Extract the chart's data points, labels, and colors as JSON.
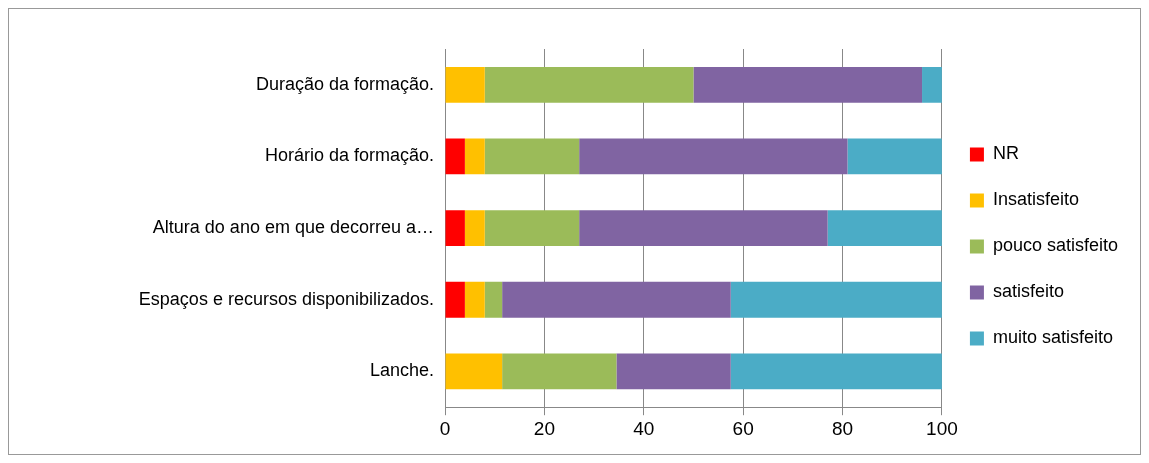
{
  "chart_data": {
    "type": "bar",
    "orientation": "horizontal",
    "stacked": true,
    "categories": [
      "Duração da formação.",
      "Horário da formação.",
      "Altura do ano em que decorreu a…",
      "Espaços e recursos disponibilizados.",
      "Lanche."
    ],
    "series": [
      {
        "name": "NR",
        "color": "#ff0000",
        "values": [
          0,
          4,
          4,
          4,
          0
        ]
      },
      {
        "name": "Insatisfeito",
        "color": "#ffc000",
        "values": [
          8,
          4,
          4,
          4,
          11.5
        ]
      },
      {
        "name": "pouco satisfeito",
        "color": "#9bbb59",
        "values": [
          42,
          19,
          19,
          3.5,
          23
        ]
      },
      {
        "name": "satisfeito",
        "color": "#8064a2",
        "values": [
          46,
          54,
          50,
          46,
          23
        ]
      },
      {
        "name": "muito satisfeito",
        "color": "#4bacc6",
        "values": [
          4,
          19,
          23,
          42.5,
          42.5
        ]
      }
    ],
    "xlim": [
      0,
      100
    ],
    "xticks": [
      0,
      20,
      40,
      60,
      80,
      100
    ],
    "grid": "x",
    "legend": "right"
  }
}
